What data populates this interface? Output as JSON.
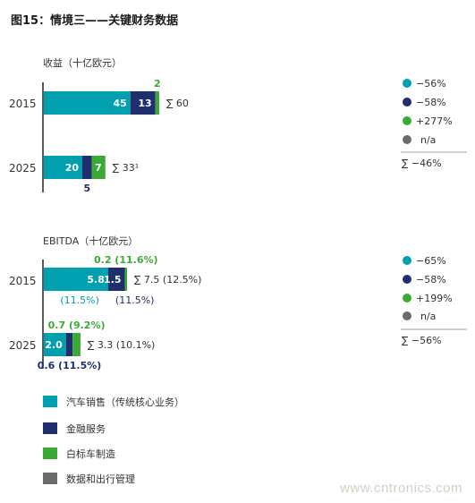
{
  "title": "图15：情境三——关键财务数据",
  "watermark": "www.cntronics.com",
  "colors": {
    "sales": "#00a0b0",
    "finance": "#1f2f6e",
    "white_label": "#3aaa35",
    "data_mobility": "#6b6b6b",
    "axis": "#222222"
  },
  "chart_data": [
    {
      "type": "bar",
      "orientation": "horizontal",
      "stacked": true,
      "title": "收益（十亿欧元）",
      "categories": [
        "2015",
        "2025"
      ],
      "series": [
        {
          "name": "汽车销售（传统核心业务）",
          "values": [
            45,
            20
          ]
        },
        {
          "name": "金融服务",
          "values": [
            13,
            5
          ]
        },
        {
          "name": "白标车制造",
          "values": [
            2,
            7
          ]
        }
      ],
      "bar_labels": [
        [
          "45",
          "13",
          "2"
        ],
        [
          "20",
          "5",
          "7"
        ]
      ],
      "totals": [
        "∑ 60",
        "∑ 33¹"
      ],
      "changes": [
        "−56%",
        "−58%",
        "+277%",
        "n/a"
      ],
      "total_change": "∑ −46%"
    },
    {
      "type": "bar",
      "orientation": "horizontal",
      "stacked": true,
      "title": "EBITDA（十亿欧元）",
      "categories": [
        "2015",
        "2025"
      ],
      "series": [
        {
          "name": "汽车销售（传统核心业务）",
          "values": [
            5.8,
            2.0
          ]
        },
        {
          "name": "金融服务",
          "values": [
            1.5,
            0.6
          ]
        },
        {
          "name": "白标车制造",
          "values": [
            0.2,
            0.7
          ]
        }
      ],
      "bar_labels": [
        [
          "5.8",
          "1.5",
          "0.2 (11.6%)"
        ],
        [
          "2.0",
          "0.6 (11.5%)",
          "0.7 (9.2%)"
        ]
      ],
      "margin_labels": [
        "(11.5%)",
        "(11.5%)"
      ],
      "totals": [
        "∑ 7.5 (12.5%)",
        "∑ 3.3 (10.1%)"
      ],
      "changes": [
        "−65%",
        "−58%",
        "+199%",
        "n/a"
      ],
      "total_change": "∑ −56%"
    }
  ],
  "legend": [
    "汽车销售（传统核心业务）",
    "金融服务",
    "白标车制造",
    "数据和出行管理"
  ]
}
